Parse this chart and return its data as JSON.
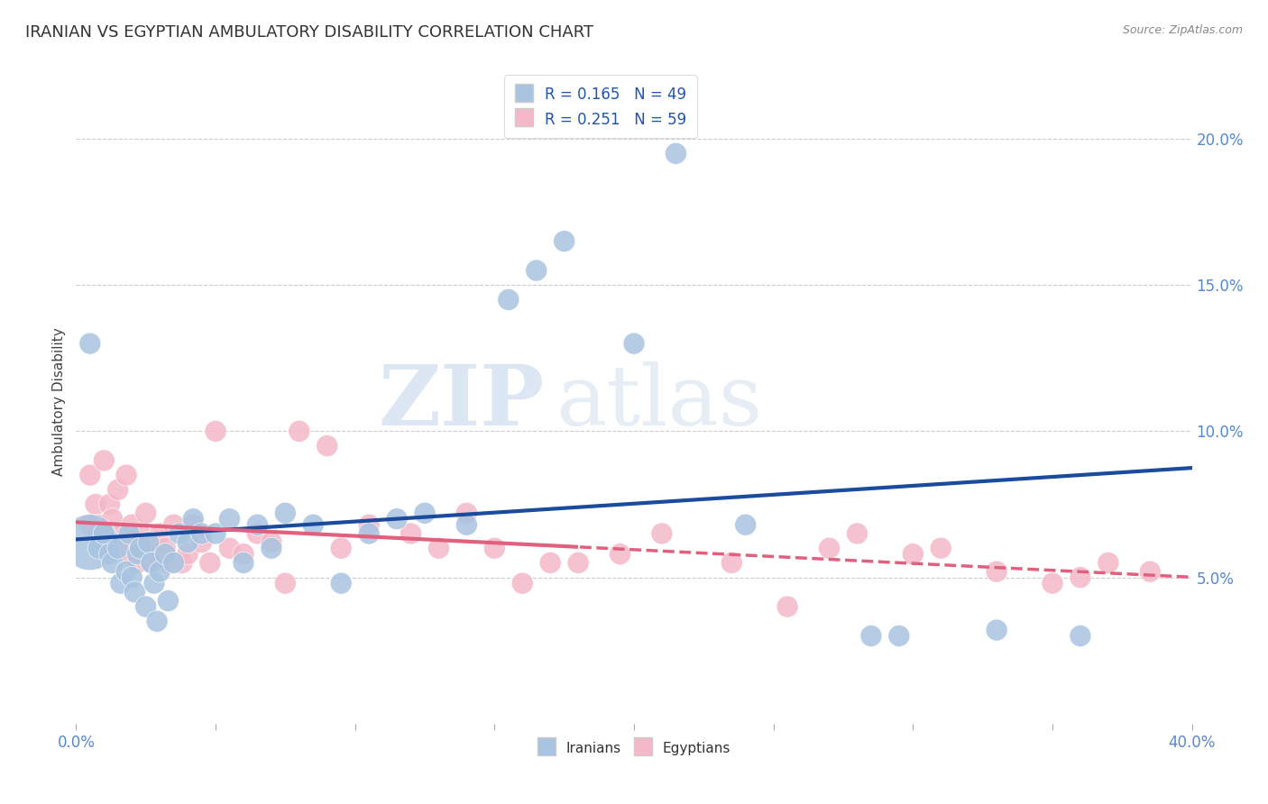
{
  "title": "IRANIAN VS EGYPTIAN AMBULATORY DISABILITY CORRELATION CHART",
  "source_text": "Source: ZipAtlas.com",
  "ylabel": "Ambulatory Disability",
  "xlim": [
    0.0,
    0.4
  ],
  "ylim": [
    0.0,
    0.22
  ],
  "xtick_positions": [
    0.0,
    0.05,
    0.1,
    0.15,
    0.2,
    0.25,
    0.3,
    0.35,
    0.4
  ],
  "xticklabels": [
    "0.0%",
    "",
    "",
    "",
    "",
    "",
    "",
    "",
    "40.0%"
  ],
  "yticks_right": [
    0.05,
    0.1,
    0.15,
    0.2
  ],
  "ytick_labels_right": [
    "5.0%",
    "10.0%",
    "15.0%",
    "20.0%"
  ],
  "r_iranians": 0.165,
  "n_iranians": 49,
  "r_egyptians": 0.251,
  "n_egyptians": 59,
  "iranians_color": "#a8c4e0",
  "egyptians_color": "#f4b8c8",
  "iranians_line_color": "#1a4b9c",
  "egyptians_line_color": "#e0607e",
  "watermark_zip": "ZIP",
  "watermark_atlas": "atlas",
  "iranians_x": [
    0.005,
    0.008,
    0.01,
    0.012,
    0.013,
    0.015,
    0.016,
    0.018,
    0.019,
    0.02,
    0.021,
    0.022,
    0.023,
    0.025,
    0.026,
    0.027,
    0.028,
    0.029,
    0.03,
    0.032,
    0.033,
    0.035,
    0.037,
    0.04,
    0.042,
    0.045,
    0.05,
    0.055,
    0.06,
    0.065,
    0.07,
    0.075,
    0.085,
    0.095,
    0.105,
    0.115,
    0.125,
    0.14,
    0.155,
    0.165,
    0.175,
    0.2,
    0.215,
    0.24,
    0.285,
    0.295,
    0.33,
    0.36,
    0.005
  ],
  "iranians_y": [
    0.062,
    0.06,
    0.065,
    0.058,
    0.055,
    0.06,
    0.048,
    0.052,
    0.065,
    0.05,
    0.045,
    0.058,
    0.06,
    0.04,
    0.062,
    0.055,
    0.048,
    0.035,
    0.052,
    0.058,
    0.042,
    0.055,
    0.065,
    0.062,
    0.07,
    0.065,
    0.065,
    0.07,
    0.055,
    0.068,
    0.06,
    0.072,
    0.068,
    0.048,
    0.065,
    0.07,
    0.072,
    0.068,
    0.145,
    0.155,
    0.165,
    0.13,
    0.195,
    0.068,
    0.03,
    0.03,
    0.032,
    0.03,
    0.13
  ],
  "iranians_sizes": [
    200,
    30,
    30,
    30,
    30,
    30,
    30,
    30,
    30,
    30,
    30,
    30,
    30,
    30,
    30,
    30,
    30,
    30,
    30,
    30,
    30,
    30,
    30,
    30,
    30,
    30,
    30,
    30,
    30,
    30,
    30,
    30,
    30,
    30,
    30,
    30,
    30,
    30,
    30,
    30,
    30,
    30,
    30,
    30,
    30,
    30,
    30,
    30,
    30
  ],
  "egyptians_x": [
    0.005,
    0.007,
    0.008,
    0.01,
    0.012,
    0.013,
    0.015,
    0.016,
    0.017,
    0.018,
    0.019,
    0.02,
    0.021,
    0.022,
    0.023,
    0.025,
    0.026,
    0.027,
    0.028,
    0.03,
    0.032,
    0.033,
    0.035,
    0.038,
    0.04,
    0.042,
    0.045,
    0.048,
    0.05,
    0.055,
    0.06,
    0.065,
    0.07,
    0.075,
    0.08,
    0.09,
    0.095,
    0.105,
    0.12,
    0.13,
    0.14,
    0.15,
    0.16,
    0.17,
    0.18,
    0.195,
    0.21,
    0.235,
    0.255,
    0.27,
    0.28,
    0.3,
    0.31,
    0.33,
    0.35,
    0.36,
    0.37,
    0.385,
    0.005
  ],
  "egyptians_y": [
    0.085,
    0.075,
    0.068,
    0.09,
    0.075,
    0.07,
    0.08,
    0.065,
    0.06,
    0.085,
    0.058,
    0.068,
    0.06,
    0.055,
    0.065,
    0.072,
    0.06,
    0.055,
    0.058,
    0.065,
    0.06,
    0.055,
    0.068,
    0.055,
    0.058,
    0.068,
    0.062,
    0.055,
    0.1,
    0.06,
    0.058,
    0.065,
    0.062,
    0.048,
    0.1,
    0.095,
    0.06,
    0.068,
    0.065,
    0.06,
    0.072,
    0.06,
    0.048,
    0.055,
    0.055,
    0.058,
    0.065,
    0.055,
    0.04,
    0.06,
    0.065,
    0.058,
    0.06,
    0.052,
    0.048,
    0.05,
    0.055,
    0.052,
    0.068
  ],
  "egyptians_sizes": [
    30,
    30,
    30,
    30,
    30,
    30,
    30,
    30,
    30,
    30,
    30,
    30,
    30,
    30,
    30,
    30,
    30,
    30,
    30,
    30,
    30,
    30,
    30,
    30,
    30,
    30,
    30,
    30,
    30,
    30,
    30,
    30,
    30,
    30,
    30,
    30,
    30,
    30,
    30,
    30,
    30,
    30,
    30,
    30,
    30,
    30,
    30,
    30,
    30,
    30,
    30,
    30,
    30,
    30,
    30,
    30,
    30,
    30,
    30
  ]
}
